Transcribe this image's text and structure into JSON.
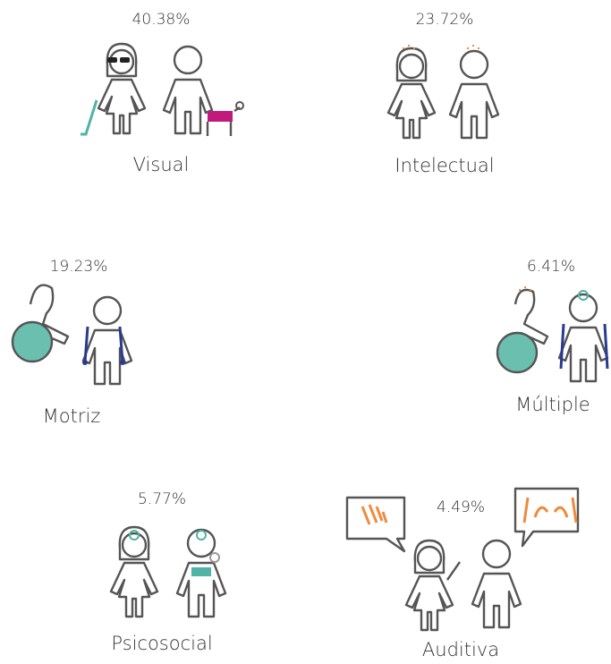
{
  "items": [
    {
      "percent": "40.38%",
      "label": "Visual"
    },
    {
      "percent": "23.72%",
      "label": "Intelectual"
    },
    {
      "percent": "19.23%",
      "label": "Motriz"
    },
    {
      "percent": "6.41%",
      "label": "Múltiple"
    },
    {
      "percent": "5.77%",
      "label": "Psicosocial"
    },
    {
      "percent": "4.49%",
      "label": "Auditiva"
    }
  ]
}
